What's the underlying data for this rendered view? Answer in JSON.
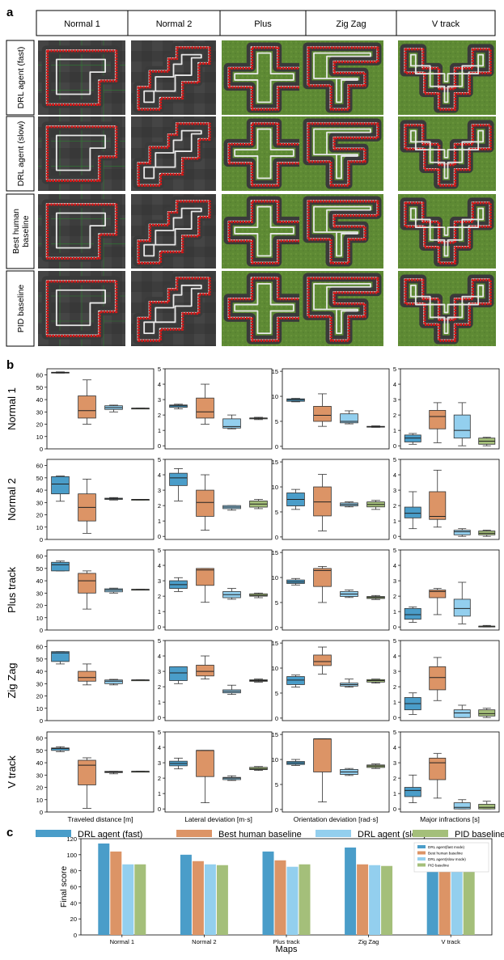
{
  "panel_a": {
    "label": "a",
    "columns": [
      "Normal 1",
      "Normal 2",
      "Plus",
      "Zig Zag",
      "V track"
    ],
    "rows": [
      "DRL agent (fast)",
      "DRL agent (slow)",
      "Best human baseline",
      "PID baseline"
    ],
    "colors": {
      "grass": "#5f8a35",
      "asphalt": "#3a3a3a",
      "trajectory": "#d61818",
      "track_line": "#e8e8e8"
    }
  },
  "panel_b": {
    "label": "b",
    "row_labels": [
      "Normal 1",
      "Normal 2",
      "Plus track",
      "Zig Zag",
      "V track"
    ],
    "col_labels": [
      "Traveled distance [m]",
      "Lateral deviation [m·s]",
      "Orientation deviation [rad·s]",
      "Major infractions [s]"
    ],
    "legend": [
      "DRL agent (fast)",
      "Best human baseline",
      "DRL agent (slow)",
      "PID baseline"
    ],
    "colors": [
      "#4a9dc9",
      "#dc9466",
      "#93cfee",
      "#a4bf7a"
    ]
  },
  "panel_c": {
    "label": "c"
  },
  "chart_data": [
    {
      "type": "box",
      "title": "",
      "xlabel": "Traveled distance [m]",
      "ylabel": "",
      "ylim": [
        0,
        65
      ],
      "yticks": [
        0,
        10,
        20,
        30,
        40,
        50,
        60
      ],
      "series_names": [
        "DRL agent (fast)",
        "Best human baseline",
        "DRL agent (slow)",
        "PID baseline"
      ],
      "rows": [
        {
          "name": "Normal 1",
          "boxes": [
            [
              61.5,
              61.8,
              62,
              62.2,
              62.5
            ],
            [
              20,
              25,
              31,
              43,
              56
            ],
            [
              30,
              32,
              33.5,
              35,
              35.5
            ],
            [
              33,
              33,
              33,
              33,
              33
            ]
          ]
        },
        {
          "name": "Normal 2",
          "boxes": [
            [
              31,
              37,
              45,
              51,
              51.5
            ],
            [
              5,
              15,
              26,
              37,
              49
            ],
            [
              32,
              32.5,
              33,
              33.5,
              34
            ],
            [
              32,
              32,
              32.5,
              32.5,
              32.5
            ]
          ]
        },
        {
          "name": "Plus track",
          "boxes": [
            [
              48,
              48,
              53,
              55,
              56
            ],
            [
              17,
              30,
              40,
              46,
              48
            ],
            [
              30,
              31,
              32.5,
              33.5,
              34
            ],
            [
              33,
              33,
              33,
              33,
              33
            ]
          ]
        },
        {
          "name": "Zig Zag",
          "boxes": [
            [
              46,
              48,
              55,
              56,
              56
            ],
            [
              29,
              32,
              35,
              40,
              46
            ],
            [
              29,
              30,
              32,
              33,
              33.5
            ],
            [
              33,
              33,
              33,
              33,
              33
            ]
          ]
        },
        {
          "name": "V track",
          "boxes": [
            [
              49,
              50,
              51.5,
              52,
              53
            ],
            [
              3,
              22,
              38,
              42,
              44
            ],
            [
              31,
              32,
              32.5,
              33,
              33
            ],
            [
              33,
              33,
              33,
              33,
              33
            ]
          ]
        }
      ]
    },
    {
      "type": "box",
      "title": "",
      "xlabel": "Lateral deviation [m·s]",
      "ylabel": "",
      "ylim": [
        -0.2,
        5
      ],
      "yticks": [
        0,
        1,
        2,
        3,
        4,
        5
      ],
      "series_names": [
        "DRL agent (fast)",
        "Best human baseline",
        "DRL agent (slow)",
        "PID baseline"
      ],
      "rows": [
        {
          "name": "Normal 1",
          "boxes": [
            [
              2.4,
              2.5,
              2.6,
              2.65,
              2.7
            ],
            [
              1.4,
              1.8,
              2.2,
              3.1,
              4.0
            ],
            [
              1.1,
              1.15,
              1.25,
              1.75,
              2.0
            ],
            [
              1.7,
              1.75,
              1.8,
              1.8,
              1.85
            ]
          ]
        },
        {
          "name": "Normal 2",
          "boxes": [
            [
              2.3,
              3.3,
              3.8,
              4.1,
              4.4
            ],
            [
              0.4,
              1.3,
              2.2,
              3.0,
              4.0
            ],
            [
              1.7,
              1.8,
              1.9,
              2.0,
              2.0
            ],
            [
              1.8,
              1.9,
              2.1,
              2.3,
              2.4
            ]
          ]
        },
        {
          "name": "Plus track",
          "boxes": [
            [
              2.3,
              2.5,
              2.75,
              3.0,
              3.2
            ],
            [
              1.6,
              2.7,
              3.7,
              3.8,
              3.8
            ],
            [
              1.8,
              1.9,
              2.1,
              2.3,
              2.5
            ],
            [
              1.9,
              2.0,
              2.05,
              2.15,
              2.2
            ]
          ]
        },
        {
          "name": "Zig Zag",
          "boxes": [
            [
              2.2,
              2.4,
              2.9,
              3.3,
              3.3
            ],
            [
              2.5,
              2.7,
              3.0,
              3.4,
              4.0
            ],
            [
              1.5,
              1.6,
              1.7,
              1.8,
              2.1
            ],
            [
              2.3,
              2.35,
              2.4,
              2.45,
              2.5
            ]
          ]
        },
        {
          "name": "V track",
          "boxes": [
            [
              2.6,
              2.8,
              2.95,
              3.1,
              3.3
            ],
            [
              0.4,
              2.1,
              3.8,
              3.8,
              3.8
            ],
            [
              1.85,
              1.9,
              2.0,
              2.05,
              2.15
            ],
            [
              2.5,
              2.55,
              2.6,
              2.7,
              2.75
            ]
          ]
        }
      ]
    },
    {
      "type": "box",
      "title": "",
      "xlabel": "Orientation deviation [rad·s]",
      "ylabel": "",
      "ylim": [
        -0.5,
        15.5
      ],
      "yticks": [
        0,
        5,
        10,
        15
      ],
      "series_names": [
        "DRL agent (fast)",
        "Best human baseline",
        "DRL agent (slow)",
        "PID baseline"
      ],
      "rows": [
        {
          "name": "Normal 1",
          "boxes": [
            [
              8.9,
              9.0,
              9.3,
              9.5,
              9.6
            ],
            [
              4.0,
              5.0,
              6.2,
              8.0,
              10.5
            ],
            [
              4.5,
              4.7,
              5.0,
              6.5,
              7.1
            ],
            [
              3.8,
              3.85,
              3.9,
              4.0,
              4.1
            ]
          ]
        },
        {
          "name": "Normal 2",
          "boxes": [
            [
              5.5,
              6.2,
              7.5,
              8.8,
              9.5
            ],
            [
              1.2,
              4.2,
              7.0,
              10.0,
              12.5
            ],
            [
              6.0,
              6.2,
              6.5,
              6.8,
              7.0
            ],
            [
              5.5,
              6.0,
              6.5,
              7.0,
              7.3
            ]
          ]
        },
        {
          "name": "Plus track",
          "boxes": [
            [
              8.5,
              8.8,
              9.1,
              9.5,
              9.8
            ],
            [
              5.0,
              8.2,
              11.4,
              11.8,
              12.2
            ],
            [
              6.0,
              6.2,
              6.7,
              7.2,
              7.5
            ],
            [
              5.6,
              5.8,
              6.0,
              6.2,
              6.4
            ]
          ]
        },
        {
          "name": "Zig Zag",
          "boxes": [
            [
              6.2,
              6.7,
              7.6,
              8.3,
              8.6
            ],
            [
              8.8,
              10.5,
              11.3,
              12.6,
              14.2
            ],
            [
              6.2,
              6.4,
              6.7,
              7.0,
              7.8
            ],
            [
              7.0,
              7.2,
              7.5,
              7.7,
              7.8
            ]
          ]
        },
        {
          "name": "V track",
          "boxes": [
            [
              8.8,
              9.0,
              9.3,
              9.6,
              10.0
            ],
            [
              1.5,
              7.5,
              14.1,
              14.1,
              14.1
            ],
            [
              6.8,
              7.0,
              7.5,
              8.0,
              8.2
            ],
            [
              8.2,
              8.4,
              8.7,
              8.9,
              9.1
            ]
          ]
        }
      ]
    },
    {
      "type": "box",
      "title": "",
      "xlabel": "Major infractions [s]",
      "ylabel": "",
      "ylim": [
        -0.2,
        5
      ],
      "yticks": [
        0,
        1,
        2,
        3,
        4,
        5
      ],
      "series_names": [
        "DRL agent (fast)",
        "Best human baseline",
        "DRL agent (slow)",
        "PID baseline"
      ],
      "rows": [
        {
          "name": "Normal 1",
          "boxes": [
            [
              0.1,
              0.25,
              0.5,
              0.7,
              0.8
            ],
            [
              0.2,
              1.1,
              1.9,
              2.3,
              2.8
            ],
            [
              0.0,
              0.5,
              1.0,
              2.0,
              2.8
            ],
            [
              0.0,
              0.1,
              0.3,
              0.5,
              0.55
            ]
          ]
        },
        {
          "name": "Normal 2",
          "boxes": [
            [
              0.5,
              1.2,
              1.5,
              1.9,
              2.9
            ],
            [
              0.6,
              1.1,
              1.3,
              2.9,
              4.3
            ],
            [
              0.0,
              0.1,
              0.3,
              0.4,
              0.5
            ],
            [
              0.0,
              0.1,
              0.2,
              0.35,
              0.4
            ]
          ]
        },
        {
          "name": "Plus track",
          "boxes": [
            [
              0.3,
              0.5,
              0.8,
              1.2,
              1.3
            ],
            [
              0.8,
              1.9,
              2.3,
              2.4,
              2.5
            ],
            [
              0.2,
              0.7,
              1.2,
              1.8,
              2.9
            ],
            [
              0.0,
              0.0,
              0.05,
              0.05,
              0.1
            ]
          ]
        },
        {
          "name": "Zig Zag",
          "boxes": [
            [
              0.2,
              0.5,
              0.9,
              1.3,
              1.6
            ],
            [
              1.1,
              1.8,
              2.6,
              3.3,
              3.9
            ],
            [
              0.0,
              0.0,
              0.3,
              0.5,
              0.8
            ],
            [
              0.0,
              0.1,
              0.25,
              0.5,
              0.6
            ]
          ]
        },
        {
          "name": "V track",
          "boxes": [
            [
              0.4,
              0.8,
              1.2,
              1.4,
              2.2
            ],
            [
              0.7,
              1.9,
              3.0,
              3.3,
              3.6
            ],
            [
              0.0,
              0.0,
              0.1,
              0.4,
              0.6
            ],
            [
              0.0,
              0.0,
              0.1,
              0.3,
              0.5
            ]
          ]
        }
      ]
    },
    {
      "type": "bar",
      "title": "",
      "xlabel": "Maps",
      "ylabel": "Final score",
      "ylim": [
        0,
        120
      ],
      "yticks": [
        0,
        20,
        40,
        60,
        80,
        100,
        120
      ],
      "categories": [
        "Normal 1",
        "Normal 2",
        "Plus track",
        "Zig Zag",
        "V track"
      ],
      "series": [
        {
          "name": "DRL agent(fast mode)",
          "values": [
            114,
            100,
            104,
            109,
            102
          ]
        },
        {
          "name": "Best human baseline",
          "values": [
            104,
            92,
            93,
            88,
            88
          ]
        },
        {
          "name": "DRL agent(slow mode)",
          "values": [
            88,
            88,
            85,
            87,
            88
          ]
        },
        {
          "name": "PID baseline",
          "values": [
            88,
            87,
            88,
            86,
            86
          ]
        }
      ],
      "colors": [
        "#4a9dc9",
        "#dc9466",
        "#93cfee",
        "#a4bf7a"
      ],
      "legend_position": "top-right"
    }
  ]
}
